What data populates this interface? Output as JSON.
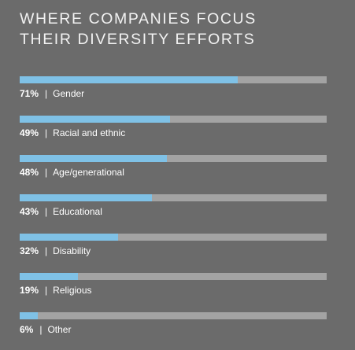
{
  "chart_data": {
    "type": "bar",
    "title": [
      "WHERE COMPANIES FOCUS",
      "THEIR DIVERSITY EFFORTS"
    ],
    "categories": [
      "Gender",
      "Racial and ethnic",
      "Age/generational",
      "Educational",
      "Disability",
      "Religious",
      "Other"
    ],
    "values": [
      71,
      49,
      48,
      43,
      32,
      19,
      6
    ],
    "value_labels": [
      "71%",
      "49%",
      "48%",
      "43%",
      "32%",
      "19%",
      "6%"
    ],
    "separator": "|",
    "xlim": [
      0,
      100
    ],
    "orientation": "horizontal",
    "grid": false,
    "legend": "none",
    "colors": {
      "background": "#6b6b6b",
      "track": "#a3a3a3",
      "fill": "#7fc1e6",
      "text": "#ffffff"
    }
  }
}
